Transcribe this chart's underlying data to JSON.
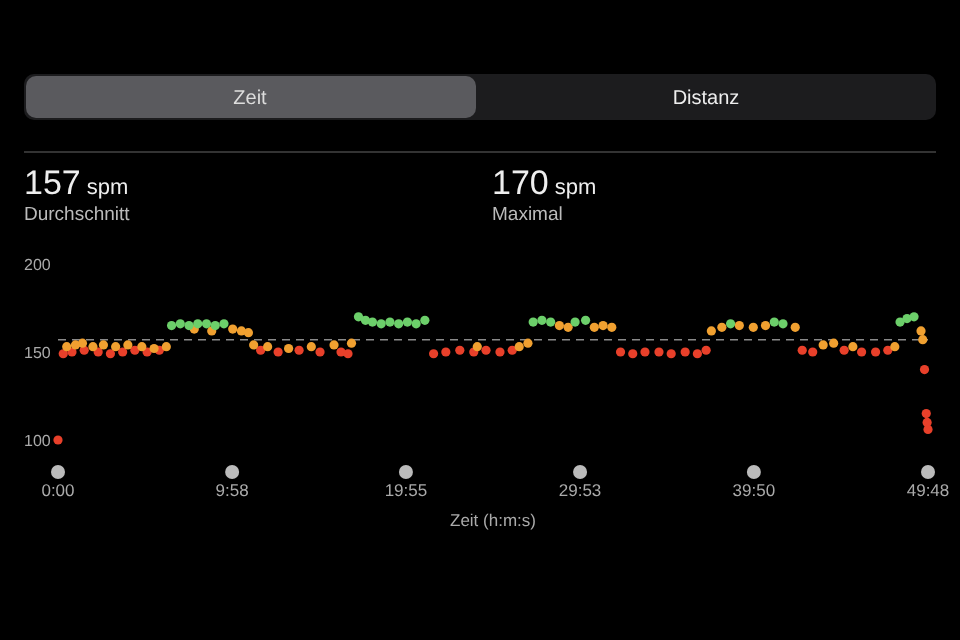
{
  "chart_data": {
    "type": "scatter",
    "xlabel": "Zeit (h:m:s)",
    "annotations": [
      "Zeit",
      "Distanz",
      "157 spm",
      "Durchschnitt",
      "170 spm",
      "Maximal"
    ],
    "xlim": [
      0,
      49.8
    ],
    "ylim": [
      100,
      200
    ],
    "xticks": [
      {
        "value": 0,
        "label": "0:00"
      },
      {
        "value": 9.967,
        "label": "9:58"
      },
      {
        "value": 19.917,
        "label": "19:55"
      },
      {
        "value": 29.883,
        "label": "29:53"
      },
      {
        "value": 39.833,
        "label": "39:50"
      },
      {
        "value": 49.8,
        "label": "49:48"
      }
    ],
    "yticks": [
      100,
      150,
      200
    ],
    "grid": false,
    "marker": "circle",
    "ref_lines": [
      {
        "axis": "y",
        "value": 157,
        "color": "#8a8a8a",
        "line_style": "dashed"
      }
    ],
    "series": [
      {
        "color": "#e8402a",
        "x": [
          0,
          0.3,
          0.8,
          1.5,
          2.3,
          3.0,
          3.7,
          4.4,
          5.1,
          5.8,
          11.6,
          12.6,
          13.8,
          15.0,
          16.2,
          16.6,
          21.5,
          22.2,
          23.0,
          23.8,
          24.5,
          25.3,
          26.0,
          32.2,
          32.9,
          33.6,
          34.4,
          35.1,
          35.9,
          36.6,
          37.1,
          42.6,
          43.2,
          45.0,
          46.0,
          46.8,
          47.5,
          49.6,
          49.7,
          49.75,
          49.8
        ],
        "values": [
          100,
          149,
          150,
          151,
          150,
          149,
          150,
          151,
          150,
          151,
          151,
          150,
          151,
          150,
          150,
          149,
          149,
          150,
          151,
          150,
          151,
          150,
          151,
          150,
          149,
          150,
          150,
          149,
          150,
          149,
          151,
          151,
          150,
          151,
          150,
          150,
          151,
          140,
          115,
          110,
          106
        ]
      },
      {
        "color": "#f0a030",
        "x": [
          0.5,
          1.0,
          1.4,
          2.0,
          2.6,
          3.3,
          4.0,
          4.8,
          5.5,
          6.2,
          7.8,
          8.8,
          10.0,
          10.5,
          10.9,
          11.2,
          12.0,
          13.2,
          14.5,
          15.8,
          16.8,
          24.0,
          26.4,
          26.9,
          28.7,
          29.2,
          30.7,
          31.2,
          31.7,
          37.4,
          38.0,
          39.0,
          39.8,
          40.5,
          42.2,
          43.8,
          44.4,
          45.5,
          47.9,
          49.4,
          49.5
        ],
        "values": [
          153,
          154,
          155,
          153,
          154,
          153,
          154,
          153,
          152,
          153,
          163,
          162,
          163,
          162,
          161,
          154,
          153,
          152,
          153,
          154,
          155,
          153,
          153,
          155,
          165,
          164,
          164,
          165,
          164,
          162,
          164,
          165,
          164,
          165,
          164,
          154,
          155,
          153,
          153,
          162,
          157
        ]
      },
      {
        "color": "#6ccf6a",
        "x": [
          6.5,
          7.0,
          7.5,
          8.0,
          8.5,
          9.0,
          9.5,
          17.2,
          17.6,
          18.0,
          18.5,
          19.0,
          19.5,
          20.0,
          20.5,
          21.0,
          27.2,
          27.7,
          28.2,
          29.6,
          30.2,
          38.5,
          41.0,
          41.5,
          48.2,
          48.6,
          49.0
        ],
        "values": [
          165,
          166,
          165,
          166,
          166,
          165,
          166,
          170,
          168,
          167,
          166,
          167,
          166,
          167,
          166,
          168,
          167,
          168,
          167,
          167,
          168,
          166,
          167,
          166,
          167,
          169,
          170
        ]
      }
    ]
  }
}
